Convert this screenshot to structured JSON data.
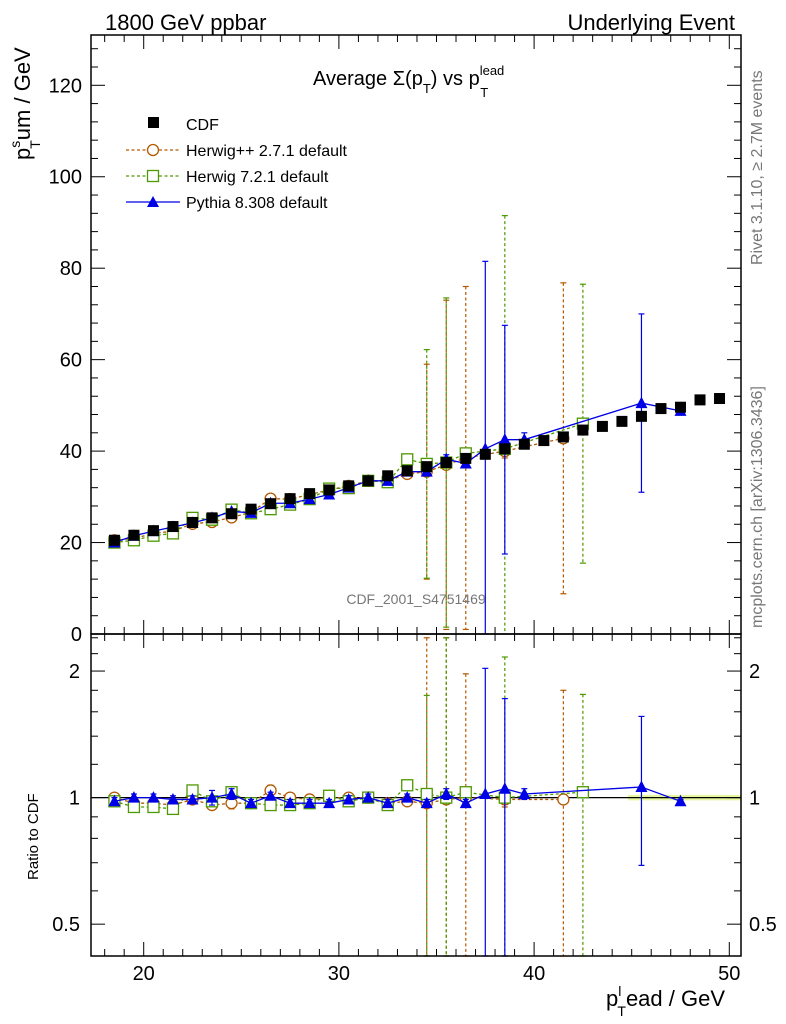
{
  "header": {
    "left": "1800 GeV ppbar",
    "right": "Underlying Event"
  },
  "side_text": {
    "rivet": "Rivet 3.1.10, ≥ 2.7M events",
    "mcplots": "mcplots.cern.ch [arXiv:1306.3436]"
  },
  "watermark": "CDF_2001_S4751469",
  "chart_data": [
    {
      "type": "scatter",
      "title": "Average Σ(pT) vs pTlead",
      "title_parts": {
        "main": "Average Σ(p",
        "sub1": "T",
        "mid": ") vs p",
        "sup": "lead",
        "sub2": "T"
      },
      "ylabel_parts": {
        "p": "p",
        "sup": "s",
        "sub": "T",
        "rest": "um / GeV"
      },
      "xlim": [
        17.3,
        50.6
      ],
      "ylim": [
        0,
        131
      ],
      "yticks": [
        0,
        20,
        40,
        60,
        80,
        100,
        120
      ],
      "legend_position": "top-left",
      "series": [
        {
          "name": "CDF",
          "color": "#000000",
          "marker": "filled-square",
          "x": [
            18.5,
            19.5,
            20.5,
            21.5,
            22.5,
            23.5,
            24.5,
            25.5,
            26.5,
            27.5,
            28.5,
            29.5,
            30.5,
            31.5,
            32.5,
            33.5,
            34.5,
            35.5,
            36.5,
            37.5,
            38.5,
            39.5,
            40.5,
            41.5,
            42.5,
            43.5,
            44.5,
            45.5,
            46.5,
            47.5,
            48.5,
            49.5
          ],
          "y": [
            20.5,
            21.6,
            22.6,
            23.5,
            24.4,
            25.4,
            26.3,
            27.3,
            28.5,
            29.6,
            30.7,
            31.5,
            32.4,
            33.5,
            34.6,
            35.7,
            36.6,
            37.5,
            38.4,
            39.3,
            40.5,
            41.5,
            42.3,
            43.1,
            44.6,
            45.4,
            46.5,
            47.6,
            49.3,
            49.6,
            51.2,
            51.5
          ],
          "err": []
        },
        {
          "name": "Herwig++ 2.7.1 default",
          "color": "#b35900",
          "marker": "open-circle",
          "line": "dashed",
          "x": [
            18.5,
            19.5,
            20.5,
            21.5,
            22.5,
            23.5,
            24.5,
            25.5,
            26.5,
            27.5,
            28.5,
            29.5,
            30.5,
            31.5,
            32.5,
            33.5,
            34.5,
            35.5,
            36.5,
            38.5,
            41.5
          ],
          "y": [
            20.5,
            20.9,
            22.0,
            22.5,
            24.1,
            24.5,
            25.5,
            26.6,
            29.6,
            29.5,
            30.5,
            31.5,
            32.4,
            33.5,
            33.5,
            35.0,
            35.5,
            37.0,
            38.5,
            40.0,
            42.8
          ],
          "err": [
            0.3,
            0.3,
            0.3,
            0.3,
            0.3,
            0.4,
            0.4,
            0.5,
            0.5,
            0.5,
            0.5,
            0.5,
            0.5,
            0.6,
            0.6,
            0.8,
            23.5,
            36.0,
            37.5,
            1.5,
            34.0
          ]
        },
        {
          "name": "Herwig 7.2.1 default",
          "color": "#4c9900",
          "marker": "open-square",
          "line": "dashed",
          "x": [
            18.5,
            19.5,
            20.5,
            21.5,
            22.5,
            23.5,
            24.5,
            25.5,
            26.5,
            27.5,
            28.5,
            29.5,
            30.5,
            31.5,
            32.5,
            33.5,
            34.5,
            35.5,
            36.5,
            38.5,
            42.5
          ],
          "y": [
            20.0,
            20.5,
            21.5,
            22.0,
            25.4,
            25.0,
            27.2,
            26.4,
            27.3,
            28.3,
            29.5,
            31.8,
            31.9,
            33.5,
            33.2,
            38.2,
            37.2,
            37.5,
            39.5,
            40.5,
            46.0
          ],
          "err": [
            0.3,
            0.3,
            0.3,
            0.3,
            0.3,
            0.3,
            0.3,
            0.3,
            0.4,
            0.4,
            0.4,
            0.5,
            0.5,
            0.5,
            0.6,
            0.7,
            25.0,
            36.0,
            1.0,
            51.0,
            30.5
          ]
        },
        {
          "name": "Pythia 8.308 default",
          "color": "#0000e6",
          "marker": "filled-triangle",
          "line": "solid",
          "x": [
            18.5,
            19.5,
            20.5,
            21.5,
            22.5,
            23.5,
            24.5,
            25.5,
            26.5,
            27.5,
            28.5,
            29.5,
            30.5,
            31.5,
            32.5,
            33.5,
            34.5,
            35.5,
            36.5,
            37.5,
            38.5,
            39.5,
            45.5,
            47.5
          ],
          "y": [
            20.0,
            21.5,
            22.5,
            23.4,
            24.3,
            25.4,
            26.8,
            26.5,
            28.6,
            28.6,
            29.5,
            30.5,
            32.0,
            33.5,
            33.5,
            35.5,
            35.5,
            38.2,
            37.3,
            40.5,
            42.5,
            42.5,
            50.5,
            48.8
          ],
          "err": [
            0.3,
            0.3,
            0.3,
            0.3,
            0.3,
            0.3,
            0.3,
            0.3,
            0.3,
            0.3,
            0.3,
            0.4,
            0.4,
            0.4,
            0.4,
            0.5,
            0.6,
            1.0,
            0.6,
            41.0,
            25.0,
            1.5,
            19.5,
            0.5
          ]
        }
      ]
    },
    {
      "type": "scatter",
      "ylabel": "Ratio to CDF",
      "xlabel_parts": {
        "p": "p",
        "sup": "l",
        "sub": "T",
        "rest": "ead / GeV"
      },
      "xlim": [
        17.3,
        50.6
      ],
      "ylim": [
        0.42,
        2.45
      ],
      "log_y": true,
      "yticks": [
        0.5,
        1,
        2
      ],
      "xticks": [
        20,
        30,
        40,
        50
      ],
      "reference_line": 1,
      "series": [
        {
          "name": "Herwig++ 2.7.1 default",
          "x": [
            18.5,
            19.5,
            20.5,
            21.5,
            22.5,
            23.5,
            24.5,
            25.5,
            26.5,
            27.5,
            28.5,
            29.5,
            30.5,
            31.5,
            32.5,
            33.5,
            34.5,
            35.5,
            36.5,
            38.5,
            41.5
          ],
          "y": [
            1.0,
            0.97,
            0.97,
            0.96,
            0.99,
            0.96,
            0.97,
            0.97,
            1.04,
            1.0,
            0.99,
            1.0,
            1.0,
            1.0,
            0.97,
            0.98,
            0.97,
            0.99,
            1.0,
            0.99,
            0.99
          ],
          "lo": [
            0.98,
            0.95,
            0.95,
            0.94,
            0.97,
            0.94,
            0.94,
            0.95,
            1.01,
            0.98,
            0.97,
            0.98,
            0.98,
            0.98,
            0.95,
            0.96,
            0.3,
            0.3,
            0.3,
            0.95,
            0.3
          ],
          "hi": [
            1.02,
            0.99,
            0.99,
            0.98,
            1.01,
            0.98,
            1.0,
            0.99,
            1.07,
            1.02,
            1.01,
            1.02,
            1.02,
            1.02,
            0.99,
            1.0,
            2.4,
            2.4,
            1.97,
            1.03,
            1.8
          ]
        },
        {
          "name": "Herwig 7.2.1 default",
          "x": [
            18.5,
            19.5,
            20.5,
            21.5,
            22.5,
            23.5,
            24.5,
            25.5,
            26.5,
            27.5,
            28.5,
            29.5,
            30.5,
            31.5,
            32.5,
            33.5,
            34.5,
            35.5,
            36.5,
            38.5,
            42.5
          ],
          "y": [
            0.98,
            0.95,
            0.95,
            0.94,
            1.04,
            0.98,
            1.03,
            0.97,
            0.96,
            0.96,
            0.97,
            1.01,
            0.98,
            1.0,
            0.96,
            1.07,
            1.02,
            1.0,
            1.03,
            1.0,
            1.03
          ],
          "lo": [
            0.96,
            0.93,
            0.93,
            0.92,
            1.02,
            0.96,
            1.01,
            0.95,
            0.94,
            0.94,
            0.95,
            0.99,
            0.96,
            0.98,
            0.94,
            1.05,
            0.3,
            0.3,
            1.0,
            0.3,
            0.3
          ],
          "hi": [
            1.0,
            0.97,
            0.97,
            0.96,
            1.06,
            1.0,
            1.05,
            0.99,
            0.98,
            0.98,
            0.99,
            1.03,
            1.0,
            1.02,
            0.98,
            1.09,
            1.75,
            2.4,
            1.06,
            2.16,
            1.76
          ]
        },
        {
          "name": "Pythia 8.308 default",
          "x": [
            18.5,
            19.5,
            20.5,
            21.5,
            22.5,
            23.5,
            24.5,
            25.5,
            26.5,
            27.5,
            28.5,
            29.5,
            30.5,
            31.5,
            32.5,
            33.5,
            34.5,
            35.5,
            36.5,
            37.5,
            38.5,
            39.5,
            45.5,
            47.5
          ],
          "y": [
            0.98,
            1.0,
            1.0,
            0.99,
            0.99,
            1.0,
            1.02,
            0.97,
            1.01,
            0.97,
            0.97,
            0.97,
            0.99,
            1.0,
            0.97,
            1.0,
            0.97,
            1.02,
            0.97,
            1.02,
            1.05,
            1.02,
            1.06,
            0.98
          ],
          "lo": [
            0.96,
            0.98,
            0.98,
            0.97,
            0.97,
            0.96,
            0.99,
            0.95,
            0.99,
            0.95,
            0.95,
            0.95,
            0.97,
            0.98,
            0.95,
            0.98,
            0.95,
            0.99,
            0.95,
            0.3,
            0.4,
            0.99,
            0.69,
            0.97
          ],
          "hi": [
            1.0,
            1.02,
            1.02,
            1.01,
            1.01,
            1.04,
            1.05,
            0.99,
            1.03,
            0.99,
            0.99,
            0.99,
            1.01,
            1.02,
            0.99,
            1.02,
            0.99,
            1.05,
            0.99,
            2.03,
            1.72,
            1.05,
            1.56,
            0.99
          ]
        }
      ]
    }
  ]
}
